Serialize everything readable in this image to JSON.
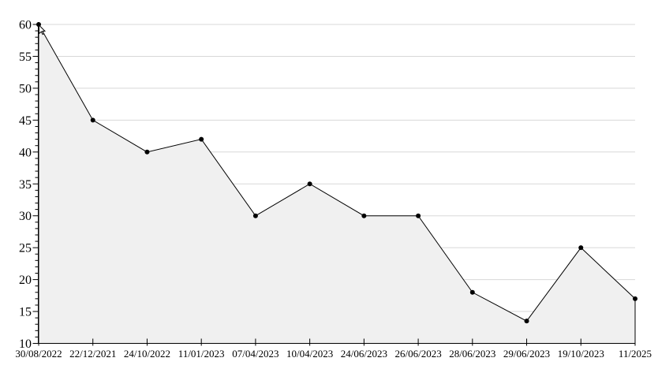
{
  "chart_data": {
    "type": "area",
    "title": "",
    "xlabel": "",
    "ylabel": "",
    "categories": [
      "30/08/2022",
      "22/12/2021",
      "24/10/2022",
      "11/01/2023",
      "07/04/2023",
      "10/04/2023",
      "24/06/2023",
      "26/06/2023",
      "28/06/2023",
      "29/06/2023",
      "19/10/2023",
      "11/2025"
    ],
    "values": [
      60,
      45,
      40,
      42,
      30,
      35,
      30,
      30,
      18,
      13.5,
      25,
      17
    ],
    "ylim": [
      10,
      60
    ],
    "yticks": [
      10,
      15,
      20,
      25,
      30,
      35,
      40,
      45,
      50,
      55,
      60
    ],
    "yminor_step": 1,
    "grid": true,
    "legend": "none",
    "marker": "dot",
    "colors": {
      "line": "#000000",
      "marker": "#000000",
      "fill": "#f0f0f0",
      "grid": "#d8d8d8",
      "axis": "#000000",
      "label": "#000000",
      "background": "#ffffff"
    }
  },
  "cursor": {
    "icon": "mouse-pointer",
    "at_point_index": 0
  }
}
